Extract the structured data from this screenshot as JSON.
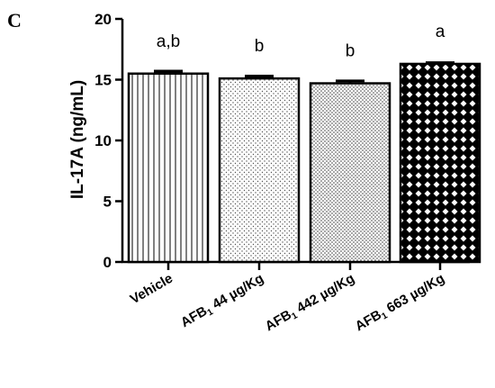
{
  "panel_label": "C",
  "chart_data": {
    "type": "bar",
    "ylabel": "IL-17A (ng/mL)",
    "ylim": [
      0,
      20
    ],
    "yticks": [
      0,
      5,
      10,
      15,
      20
    ],
    "grid": false,
    "categories": [
      {
        "prefix": "Vehicle",
        "sub": "",
        "suffix": ""
      },
      {
        "prefix": "AFB",
        "sub": "1",
        "suffix": " 44 µg/Kg"
      },
      {
        "prefix": "AFB",
        "sub": "1",
        "suffix": " 442 µg/Kg"
      },
      {
        "prefix": "AFB",
        "sub": "1",
        "suffix": " 663 µg/Kg"
      }
    ],
    "values": [
      15.5,
      15.1,
      14.7,
      16.3
    ],
    "errors": [
      0.2,
      0.2,
      0.2,
      0.1
    ],
    "patterns": [
      "vertical-lines",
      "fine-dots",
      "dense-dots",
      "crosshatch"
    ],
    "significance": [
      "a,b",
      "b",
      "b",
      "a"
    ]
  }
}
